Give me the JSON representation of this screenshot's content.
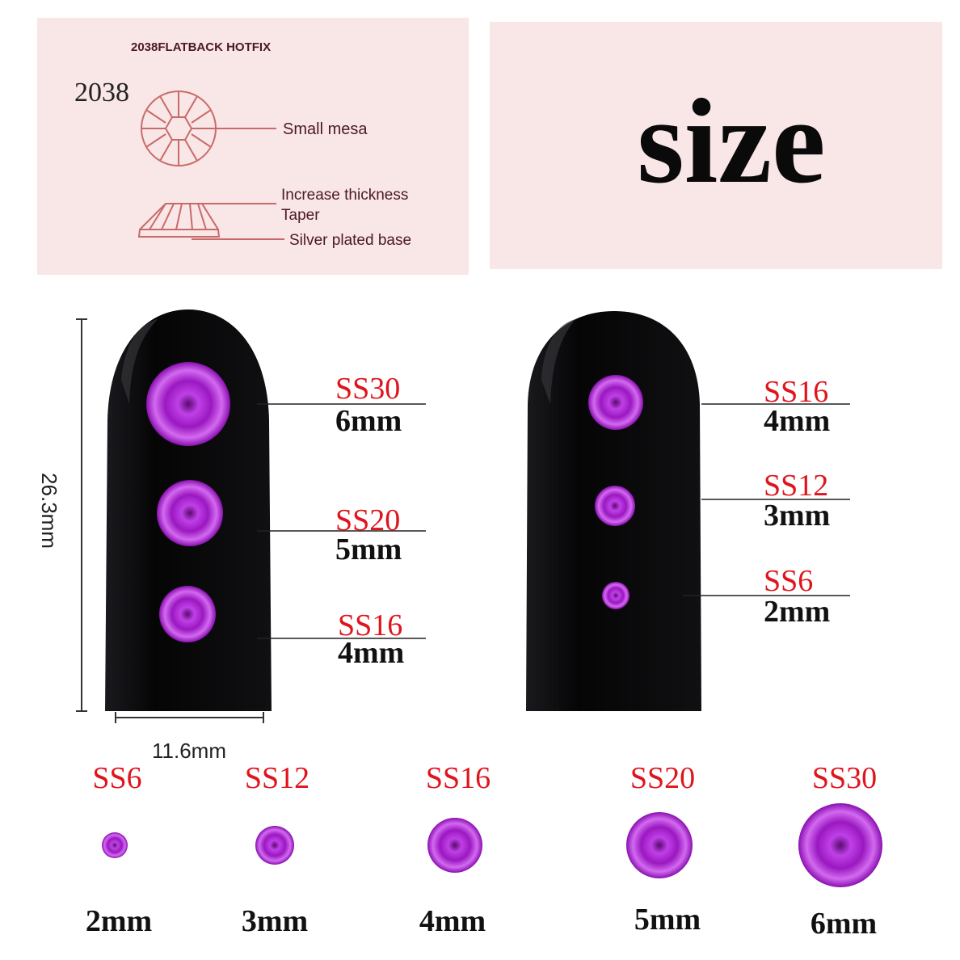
{
  "diagram": {
    "header": "2038FLATBACK HOTFIX",
    "model": "2038",
    "labels": [
      "Small mesa",
      "Increase thickness",
      "Taper",
      "Silver plated base"
    ]
  },
  "title": "size",
  "nail_dimensions": {
    "height": "26.3mm",
    "width": "11.6mm"
  },
  "left_nail": [
    {
      "code": "SS30",
      "size": "6mm"
    },
    {
      "code": "SS20",
      "size": "5mm"
    },
    {
      "code": "SS16",
      "size": "4mm"
    }
  ],
  "right_nail": [
    {
      "code": "SS16",
      "size": "4mm"
    },
    {
      "code": "SS12",
      "size": "3mm"
    },
    {
      "code": "SS6",
      "size": "2mm"
    }
  ],
  "bottom_row": [
    {
      "code": "SS6",
      "size": "2mm"
    },
    {
      "code": "SS12",
      "size": "3mm"
    },
    {
      "code": "SS16",
      "size": "4mm"
    },
    {
      "code": "SS20",
      "size": "5mm"
    },
    {
      "code": "SS30",
      "size": "6mm"
    }
  ],
  "colors": {
    "panel": "#f9e6e6",
    "diagram_line": "#c96a6a",
    "label_red": "#e0141c",
    "gem": "#b21ed6",
    "nail": "#0c0c0e"
  }
}
